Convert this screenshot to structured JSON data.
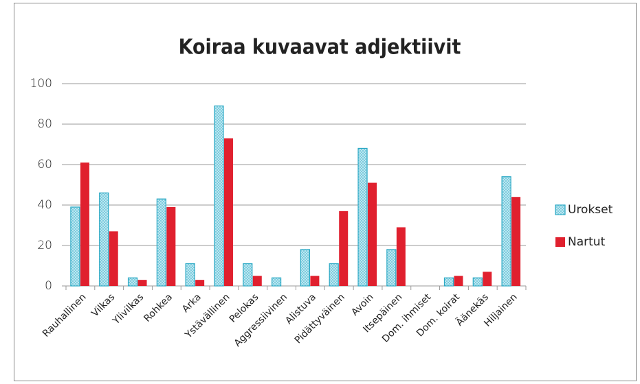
{
  "chart_data": {
    "type": "bar",
    "title": "Koiraa kuvaavat adjektiivit",
    "categories": [
      "Rauhallinen",
      "Vilkas",
      "Ylivilkas",
      "Rohkea",
      "Arka",
      "Ystävällinen",
      "Pelokas",
      "Aggressiivinen",
      "Alistuva",
      "Pidättyväinen",
      "Avoin",
      "Itsepäinen",
      "Dom. ihmiset",
      "Dom. koirat",
      "Äänekäs",
      "Hiljainen"
    ],
    "series": [
      {
        "name": "Urokset",
        "color": "#2aa8c4",
        "values": [
          39,
          46,
          4,
          43,
          11,
          89,
          11,
          4,
          18,
          11,
          68,
          18,
          0,
          4,
          4,
          54
        ]
      },
      {
        "name": "Nartut",
        "color": "#e0202e",
        "values": [
          61,
          27,
          3,
          39,
          3,
          73,
          5,
          0,
          5,
          37,
          51,
          29,
          0,
          5,
          7,
          44
        ]
      }
    ],
    "ylim": [
      0,
      100
    ],
    "yticks": [
      0,
      20,
      40,
      60,
      80,
      100
    ],
    "grid": true,
    "legend": "right"
  }
}
